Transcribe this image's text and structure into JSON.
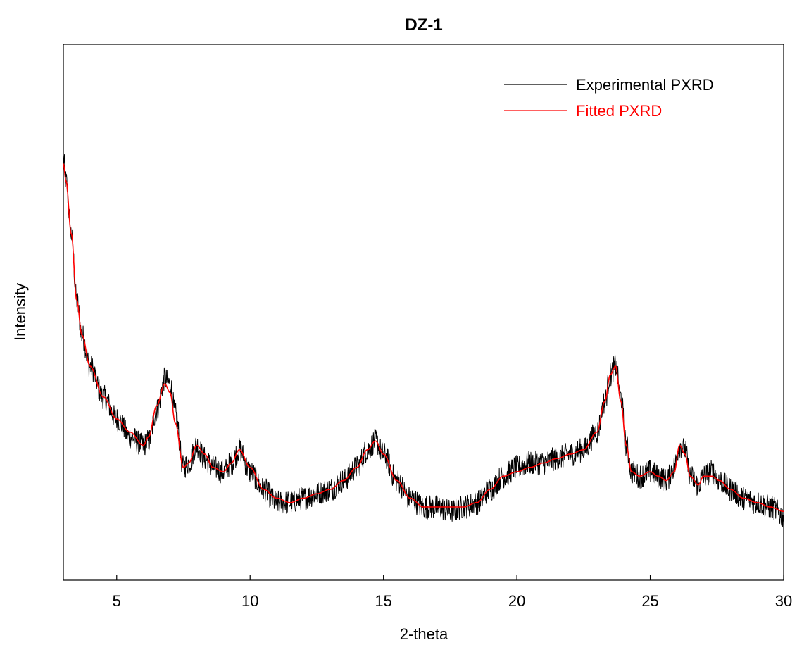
{
  "chart_data": {
    "type": "line",
    "title": "DZ-1",
    "xlabel": "2-theta",
    "ylabel": "Intensity",
    "xlim": [
      3,
      30
    ],
    "ylim": [
      0,
      100
    ],
    "x_ticks": [
      5,
      10,
      15,
      20,
      25,
      30
    ],
    "x_tick_labels": [
      "5",
      "10",
      "15",
      "20",
      "25",
      "30"
    ],
    "y_ticks_shown": false,
    "grid": false,
    "legend_position": "top-right",
    "series": [
      {
        "name": "Experimental PXRD",
        "color": "#000000",
        "noisy": true,
        "x": [
          3.0,
          3.1,
          3.3,
          3.5,
          3.7,
          4.0,
          4.5,
          5.0,
          5.5,
          6.0,
          6.2,
          6.5,
          6.8,
          7.0,
          7.2,
          7.5,
          7.7,
          8.0,
          8.3,
          8.6,
          9.0,
          9.3,
          9.6,
          10.0,
          10.5,
          11.0,
          11.5,
          12.0,
          12.5,
          13.0,
          13.5,
          14.0,
          14.4,
          14.7,
          15.0,
          15.5,
          16.0,
          16.5,
          17.0,
          17.5,
          18.0,
          18.5,
          19.0,
          19.5,
          20.0,
          20.5,
          21.0,
          21.5,
          22.0,
          22.5,
          23.0,
          23.3,
          23.5,
          23.7,
          23.9,
          24.1,
          24.3,
          24.6,
          25.0,
          25.3,
          25.6,
          25.9,
          26.1,
          26.3,
          26.5,
          26.8,
          27.0,
          27.3,
          27.6,
          28.0,
          28.5,
          29.0,
          29.5,
          30.0
        ],
        "y": [
          87,
          82,
          70,
          55,
          47,
          40,
          33,
          28,
          24,
          22,
          23,
          30,
          37,
          36,
          29,
          17,
          18,
          22,
          19,
          17,
          16,
          18,
          21,
          16,
          12,
          9,
          9,
          10,
          11,
          12,
          14,
          17,
          21,
          23,
          20,
          14,
          10,
          8,
          8,
          7,
          8,
          9,
          12,
          15,
          17,
          18,
          18,
          19,
          20,
          21,
          25,
          32,
          38,
          40,
          33,
          22,
          16,
          15,
          16,
          15,
          14,
          17,
          22,
          21,
          15,
          13,
          15,
          16,
          14,
          12,
          10,
          9,
          8,
          6
        ]
      },
      {
        "name": "Fitted PXRD",
        "color": "#ff0000",
        "noisy": false,
        "x": [
          3.0,
          3.1,
          3.3,
          3.5,
          3.7,
          4.0,
          4.5,
          5.0,
          5.5,
          6.0,
          6.2,
          6.5,
          6.8,
          7.0,
          7.2,
          7.5,
          7.7,
          8.0,
          8.3,
          8.6,
          9.0,
          9.3,
          9.6,
          10.0,
          10.5,
          11.0,
          11.5,
          12.0,
          12.5,
          13.0,
          13.5,
          14.0,
          14.4,
          14.7,
          15.0,
          15.5,
          16.0,
          16.5,
          17.0,
          17.5,
          18.0,
          18.5,
          19.0,
          19.5,
          20.0,
          20.5,
          21.0,
          21.5,
          22.0,
          22.5,
          23.0,
          23.3,
          23.5,
          23.7,
          23.9,
          24.1,
          24.3,
          24.6,
          25.0,
          25.3,
          25.6,
          25.9,
          26.1,
          26.3,
          26.5,
          26.8,
          27.0,
          27.3,
          27.6,
          28.0,
          28.5,
          29.0,
          29.5,
          30.0
        ],
        "y": [
          86,
          82,
          70,
          55,
          47,
          40,
          33,
          28,
          25,
          22,
          24,
          31,
          36,
          34,
          27,
          17,
          18,
          22,
          20,
          17,
          16,
          18,
          21,
          17,
          12,
          10,
          9,
          10,
          11,
          12,
          14,
          17,
          21,
          23,
          20,
          14,
          10,
          8,
          8,
          8,
          8,
          9,
          12,
          15,
          16,
          17,
          18,
          19,
          20,
          21,
          25,
          32,
          38,
          40,
          32,
          22,
          16,
          15,
          16,
          15,
          14,
          16,
          22,
          20,
          15,
          13,
          15,
          15,
          14,
          12,
          10,
          9,
          8,
          7
        ]
      }
    ]
  }
}
